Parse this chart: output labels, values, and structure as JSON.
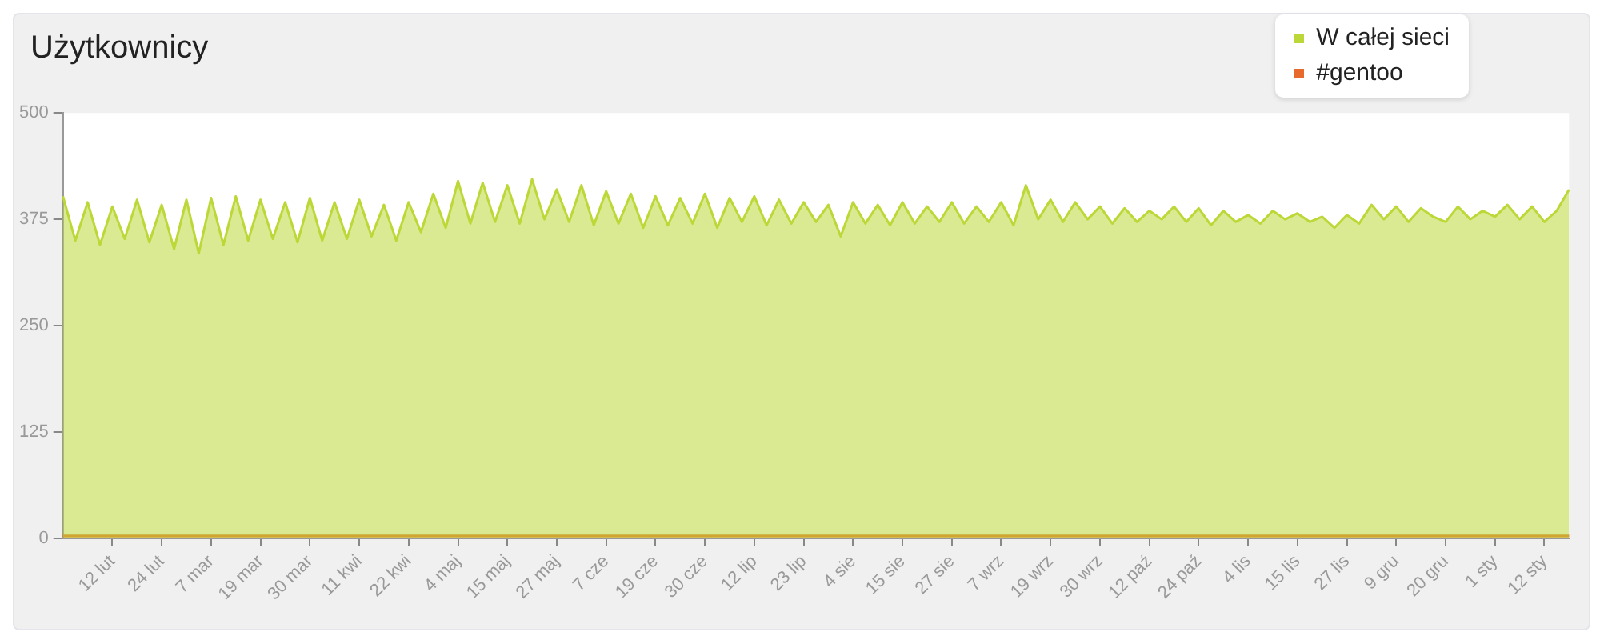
{
  "chart_data": {
    "type": "area",
    "title": "Użytkownicy",
    "legend": "top right",
    "grid": false,
    "categories": [
      null,
      null,
      null,
      null,
      "12 lut",
      null,
      null,
      null,
      "24 lut",
      null,
      null,
      null,
      "7 mar",
      null,
      null,
      null,
      "19 mar",
      null,
      null,
      null,
      "30 mar",
      null,
      null,
      null,
      "11 kwi",
      null,
      null,
      null,
      "22 kwi",
      null,
      null,
      null,
      "4 maj",
      null,
      null,
      null,
      "15 maj",
      null,
      null,
      null,
      "27 maj",
      null,
      null,
      null,
      "7 cze",
      null,
      null,
      null,
      "19 cze",
      null,
      null,
      null,
      "30 cze",
      null,
      null,
      null,
      "12 lip",
      null,
      null,
      null,
      "23 lip",
      null,
      null,
      null,
      "4 sie",
      null,
      null,
      null,
      "15 sie",
      null,
      null,
      null,
      "27 sie",
      null,
      null,
      null,
      "7 wrz",
      null,
      null,
      null,
      "19 wrz",
      null,
      null,
      null,
      "30 wrz",
      null,
      null,
      null,
      "12 paź",
      null,
      null,
      null,
      "24 paź",
      null,
      null,
      null,
      "4 lis",
      null,
      null,
      null,
      "15 lis",
      null,
      null,
      null,
      "27 lis",
      null,
      null,
      null,
      "9 gru",
      null,
      null,
      null,
      "20 gru",
      null,
      null,
      null,
      "1 sty",
      null,
      null,
      null,
      "12 sty",
      null,
      null
    ],
    "series": [
      {
        "name": "W całej sieci",
        "color": "#bcd838",
        "values": [
          402,
          350,
          395,
          345,
          390,
          352,
          398,
          348,
          392,
          340,
          398,
          335,
          400,
          345,
          402,
          350,
          398,
          352,
          395,
          348,
          400,
          350,
          395,
          352,
          398,
          355,
          392,
          350,
          395,
          360,
          405,
          365,
          420,
          370,
          418,
          372,
          415,
          370,
          422,
          375,
          410,
          372,
          415,
          368,
          408,
          370,
          405,
          365,
          402,
          368,
          400,
          370,
          405,
          365,
          400,
          372,
          402,
          368,
          398,
          370,
          395,
          372,
          392,
          355,
          395,
          370,
          392,
          368,
          395,
          370,
          390,
          372,
          395,
          370,
          390,
          372,
          395,
          368,
          415,
          375,
          398,
          372,
          395,
          375,
          390,
          370,
          388,
          372,
          385,
          375,
          390,
          372,
          388,
          368,
          385,
          372,
          380,
          370,
          385,
          375,
          382,
          372,
          378,
          365,
          380,
          370,
          392,
          375,
          390,
          372,
          388,
          378,
          372,
          390,
          375,
          385,
          378,
          392,
          375,
          390,
          372,
          385,
          410
        ]
      },
      {
        "name": "#gentoo",
        "color": "#e8692c",
        "values": [
          3,
          3,
          3,
          3,
          3,
          3,
          3,
          3,
          3,
          3,
          3,
          3,
          3,
          3,
          3,
          3,
          3,
          3,
          3,
          3,
          3,
          3,
          3,
          3,
          3,
          3,
          3,
          3,
          3,
          3,
          3,
          3,
          3,
          3,
          3,
          3,
          3,
          3,
          3,
          3,
          3,
          3,
          3,
          3,
          3,
          3,
          3,
          3,
          3,
          3,
          3,
          3,
          3,
          3,
          3,
          3,
          3,
          3,
          3,
          3,
          3,
          3,
          3,
          3,
          3,
          3,
          3,
          3,
          3,
          3,
          3,
          3,
          3,
          3,
          3,
          3,
          3,
          3,
          3,
          3,
          3,
          3,
          3,
          3,
          3,
          3,
          3,
          3,
          3,
          3,
          3,
          3,
          3,
          3,
          3,
          3,
          3,
          3,
          3,
          3,
          3,
          3,
          3,
          3,
          3,
          3,
          3,
          3,
          3,
          3,
          3,
          3,
          3,
          3,
          3,
          3,
          3,
          3,
          3,
          3,
          3,
          3,
          3
        ]
      }
    ],
    "ylim": [
      0,
      500
    ],
    "yticks": [
      0,
      125,
      250,
      375,
      500
    ]
  }
}
